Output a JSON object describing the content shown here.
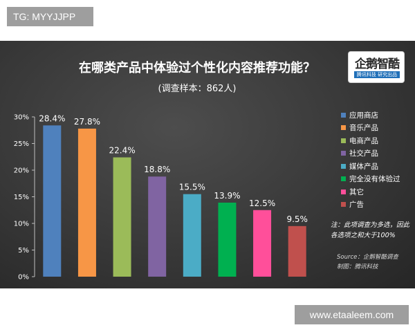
{
  "watermark_top": "TG: MYYJJPP",
  "watermark_bottom": "www.etaaleem.com",
  "logo": {
    "name": "企鹅智酷",
    "tagline": "腾讯科技 研究出品"
  },
  "note": "注：此项调查为多选，因此各选项之和大于100%",
  "source": "Source：企鹅智酷调查",
  "credit": "制图：腾讯科技",
  "chart_data": {
    "type": "bar",
    "title": "在哪类产品中体验过个性化内容推荐功能？",
    "subtitle": "(调查样本：862人)",
    "categories": [
      "应用商店",
      "音乐产品",
      "电商产品",
      "社交产品",
      "媒体产品",
      "完全没有体验过",
      "其它",
      "广告"
    ],
    "values": [
      28.4,
      27.8,
      22.4,
      18.8,
      15.5,
      13.9,
      12.5,
      9.5
    ],
    "value_labels": [
      "28.4%",
      "27.8%",
      "22.4%",
      "18.8%",
      "15.5%",
      "13.9%",
      "12.5%",
      "9.5%"
    ],
    "colors": [
      "#4f81bd",
      "#f79646",
      "#9bbb59",
      "#8064a2",
      "#4bacc6",
      "#00b050",
      "#ff4f9a",
      "#c0504d"
    ],
    "ylim": [
      0,
      30
    ],
    "yticks": [
      0,
      5,
      10,
      15,
      20,
      25,
      30
    ],
    "ytick_labels": [
      "0%",
      "5%",
      "10%",
      "15%",
      "20%",
      "25%",
      "30%"
    ],
    "grid": false,
    "legend_position": "right",
    "xlabel": "",
    "ylabel": ""
  }
}
